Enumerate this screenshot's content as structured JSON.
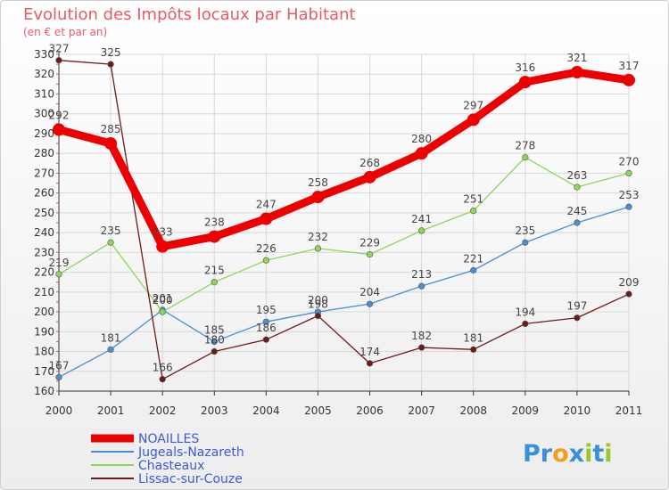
{
  "chart_data": {
    "type": "line",
    "title": "Evolution des Impôts locaux par Habitant",
    "subtitle": "(en € et par an)",
    "xlabel": "",
    "ylabel": "",
    "categories": [
      "2000",
      "2001",
      "2002",
      "2003",
      "2004",
      "2005",
      "2006",
      "2007",
      "2008",
      "2009",
      "2010",
      "2011"
    ],
    "ylim": [
      160,
      330
    ],
    "yticks": [
      160,
      170,
      180,
      190,
      200,
      210,
      220,
      230,
      240,
      250,
      260,
      270,
      280,
      290,
      300,
      310,
      320,
      330
    ],
    "grid": true,
    "legend_position": "bottom-left",
    "series": [
      {
        "name": "NOAILLES",
        "color": "#ee0000",
        "values": [
          292,
          285,
          233,
          238,
          247,
          258,
          268,
          280,
          297,
          316,
          321,
          317
        ]
      },
      {
        "name": "Jugeals-Nazareth",
        "color": "#4a8fd2",
        "values": [
          167,
          181,
          201,
          185,
          195,
          200,
          204,
          213,
          221,
          235,
          245,
          253
        ]
      },
      {
        "name": "Chasteaux",
        "color": "#8fd65a",
        "values": [
          219,
          235,
          200,
          215,
          226,
          232,
          229,
          241,
          251,
          278,
          263,
          270
        ]
      },
      {
        "name": "Lissac-sur-Couze",
        "color": "#6e1a1a",
        "values": [
          327,
          325,
          166,
          180,
          186,
          198,
          174,
          182,
          181,
          194,
          197,
          209
        ]
      }
    ]
  },
  "logo": {
    "text": "Proxiti",
    "letters": [
      "P",
      "r",
      "o",
      "x",
      "i",
      "t",
      "i"
    ],
    "colors": [
      "#3a8fd8",
      "#3a8fd8",
      "#f2a01a",
      "#3a8fd8",
      "#9ac62e",
      "#3a8fd8",
      "#9ac62e"
    ]
  }
}
